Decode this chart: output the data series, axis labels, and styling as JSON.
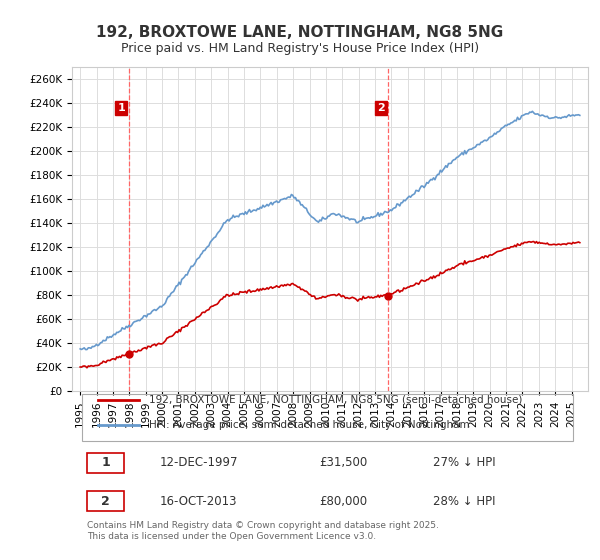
{
  "title": "192, BROXTOWE LANE, NOTTINGHAM, NG8 5NG",
  "subtitle": "Price paid vs. HM Land Registry's House Price Index (HPI)",
  "title_fontsize": 11,
  "subtitle_fontsize": 9,
  "background_color": "#ffffff",
  "plot_bg_color": "#ffffff",
  "grid_color": "#dddddd",
  "legend_label_red": "192, BROXTOWE LANE, NOTTINGHAM, NG8 5NG (semi-detached house)",
  "legend_label_blue": "HPI: Average price, semi-detached house, City of Nottingham",
  "sale1_date": 1997.95,
  "sale1_price": 31500,
  "sale1_label": "1",
  "sale2_date": 2013.79,
  "sale2_price": 80000,
  "sale2_label": "2",
  "sale1_annotation": "12-DEC-1997",
  "sale1_amount": "£31,500",
  "sale1_hpi": "27% ↓ HPI",
  "sale2_annotation": "16-OCT-2013",
  "sale2_amount": "£80,000",
  "sale2_hpi": "28% ↓ HPI",
  "footer": "Contains HM Land Registry data © Crown copyright and database right 2025.\nThis data is licensed under the Open Government Licence v3.0.",
  "ylabel_fontsize": 8,
  "xlabel_fontsize": 8,
  "tick_fontsize": 7.5,
  "red_color": "#cc0000",
  "blue_color": "#6699cc",
  "vline_color": "#ff6666",
  "marker_color_red": "#cc0000",
  "marker_color_blue": "#6699cc"
}
